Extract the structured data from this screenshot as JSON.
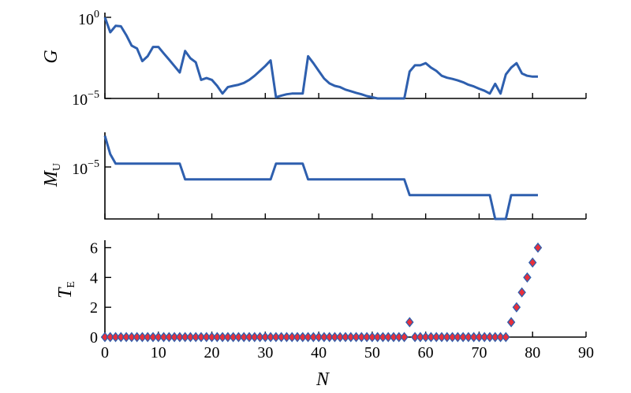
{
  "chart_data": [
    {
      "type": "line",
      "ylabel": "G",
      "yscale": "log",
      "ylim": [
        1e-05,
        1
      ],
      "yticks": [
        {
          "value": 1,
          "base": "10",
          "exp": "0"
        },
        {
          "value": 1e-05,
          "base": "10",
          "exp": "−5"
        }
      ],
      "xlim": [
        0,
        90
      ],
      "x": [
        0,
        1,
        2,
        3,
        4,
        5,
        6,
        7,
        8,
        9,
        10,
        11,
        12,
        13,
        14,
        15,
        16,
        17,
        18,
        19,
        20,
        21,
        22,
        23,
        24,
        25,
        26,
        27,
        28,
        29,
        30,
        31,
        32,
        33,
        34,
        35,
        36,
        37,
        38,
        39,
        40,
        41,
        42,
        43,
        44,
        45,
        46,
        47,
        48,
        49,
        50,
        51,
        52,
        53,
        54,
        55,
        56,
        57,
        58,
        59,
        60,
        61,
        62,
        63,
        64,
        65,
        66,
        67,
        68,
        69,
        70,
        71,
        72,
        73,
        74,
        75,
        76,
        77,
        78,
        79,
        80,
        81
      ],
      "y": [
        1.0,
        0.12,
        0.3,
        0.28,
        0.08,
        0.018,
        0.012,
        0.002,
        0.004,
        0.015,
        0.015,
        0.006,
        0.0025,
        0.001,
        0.0004,
        0.0085,
        0.003,
        0.0017,
        0.00014,
        0.00018,
        0.00014,
        6e-05,
        2e-05,
        5e-05,
        6e-05,
        7e-05,
        9e-05,
        0.00014,
        0.00025,
        0.0005,
        0.001,
        0.0022,
        1.2e-05,
        1.5e-05,
        1.8e-05,
        2e-05,
        2e-05,
        2e-05,
        0.004,
        0.0015,
        0.0005,
        0.00017,
        8.5e-05,
        6e-05,
        5e-05,
        3.5e-05,
        2.8e-05,
        2.2e-05,
        1.8e-05,
        1.4e-05,
        1.2e-05,
        1e-05,
        1e-05,
        1e-05,
        1e-05,
        1e-05,
        1e-05,
        0.00045,
        0.0011,
        0.0011,
        0.0015,
        0.0008,
        0.0005,
        0.00025,
        0.00019,
        0.00016,
        0.00013,
        0.0001,
        7e-05,
        5.5e-05,
        4e-05,
        3e-05,
        2e-05,
        8e-05,
        2e-05,
        0.0003,
        0.0008,
        0.0015,
        0.00035,
        0.00025,
        0.00022,
        0.00022
      ]
    },
    {
      "type": "line",
      "ylabel": "M",
      "ylabel_sub": "U",
      "yscale": "log",
      "ylim": [
        3e-09,
        0.001
      ],
      "yticks": [
        {
          "value": 1e-05,
          "base": "10",
          "exp": "−5"
        }
      ],
      "xlim": [
        0,
        90
      ],
      "x": [
        0,
        1,
        2,
        3,
        4,
        5,
        6,
        7,
        8,
        9,
        10,
        11,
        12,
        13,
        14,
        15,
        16,
        17,
        18,
        19,
        20,
        21,
        22,
        23,
        24,
        25,
        26,
        27,
        28,
        29,
        30,
        31,
        32,
        33,
        34,
        35,
        36,
        37,
        38,
        39,
        40,
        41,
        42,
        43,
        44,
        45,
        46,
        47,
        48,
        49,
        50,
        51,
        52,
        53,
        54,
        55,
        56,
        57,
        58,
        59,
        60,
        61,
        62,
        63,
        64,
        65,
        66,
        67,
        68,
        69,
        70,
        71,
        72,
        73,
        74,
        75,
        76,
        77,
        78,
        79,
        80,
        81
      ],
      "y": [
        0.0006,
        4e-05,
        1e-05,
        1e-05,
        1e-05,
        1e-05,
        1e-05,
        1e-05,
        1e-05,
        1e-05,
        1e-05,
        1e-05,
        1e-05,
        1e-05,
        1e-05,
        1e-06,
        1e-06,
        1e-06,
        1e-06,
        1e-06,
        1e-06,
        1e-06,
        1e-06,
        1e-06,
        1e-06,
        1e-06,
        1e-06,
        1e-06,
        1e-06,
        1e-06,
        1e-06,
        1e-06,
        1e-05,
        1e-05,
        1e-05,
        1e-05,
        1e-05,
        1e-05,
        1e-06,
        1e-06,
        1e-06,
        1e-06,
        1e-06,
        1e-06,
        1e-06,
        1e-06,
        1e-06,
        1e-06,
        1e-06,
        1e-06,
        1e-06,
        1e-06,
        1e-06,
        1e-06,
        1e-06,
        1e-06,
        1e-06,
        1e-07,
        1e-07,
        1e-07,
        1e-07,
        1e-07,
        1e-07,
        1e-07,
        1e-07,
        1e-07,
        1e-07,
        1e-07,
        1e-07,
        1e-07,
        1e-07,
        1e-07,
        1e-07,
        3e-09,
        3e-09,
        3e-09,
        1e-07,
        1e-07,
        1e-07,
        1e-07,
        1e-07,
        1e-07
      ]
    },
    {
      "type": "scatter",
      "ylabel": "T",
      "ylabel_sub": "E",
      "ylim": [
        0,
        6.5
      ],
      "yticks": [
        0,
        2,
        4,
        6
      ],
      "xlabel": "N",
      "xlim": [
        0,
        90
      ],
      "xticks": [
        0,
        10,
        20,
        30,
        40,
        50,
        60,
        70,
        80,
        90
      ],
      "x": [
        0,
        1,
        2,
        3,
        4,
        5,
        6,
        7,
        8,
        9,
        10,
        11,
        12,
        13,
        14,
        15,
        16,
        17,
        18,
        19,
        20,
        21,
        22,
        23,
        24,
        25,
        26,
        27,
        28,
        29,
        30,
        31,
        32,
        33,
        34,
        35,
        36,
        37,
        38,
        39,
        40,
        41,
        42,
        43,
        44,
        45,
        46,
        47,
        48,
        49,
        50,
        51,
        52,
        53,
        54,
        55,
        56,
        57,
        58,
        59,
        60,
        61,
        62,
        63,
        64,
        65,
        66,
        67,
        68,
        69,
        70,
        71,
        72,
        73,
        74,
        75,
        76,
        77,
        78,
        79,
        80,
        81
      ],
      "y": [
        0,
        0,
        0,
        0,
        0,
        0,
        0,
        0,
        0,
        0,
        0,
        0,
        0,
        0,
        0,
        0,
        0,
        0,
        0,
        0,
        0,
        0,
        0,
        0,
        0,
        0,
        0,
        0,
        0,
        0,
        0,
        0,
        0,
        0,
        0,
        0,
        0,
        0,
        0,
        0,
        0,
        0,
        0,
        0,
        0,
        0,
        0,
        0,
        0,
        0,
        0,
        0,
        0,
        0,
        0,
        0,
        0,
        1,
        0,
        0,
        0,
        0,
        0,
        0,
        0,
        0,
        0,
        0,
        0,
        0,
        0,
        0,
        0,
        0,
        0,
        0,
        1,
        2,
        3,
        4,
        5,
        6
      ],
      "colors": {
        "fill": "#e8303a",
        "edge": "#2e5fae"
      }
    }
  ],
  "colors": {
    "line": "#2e5fae"
  }
}
